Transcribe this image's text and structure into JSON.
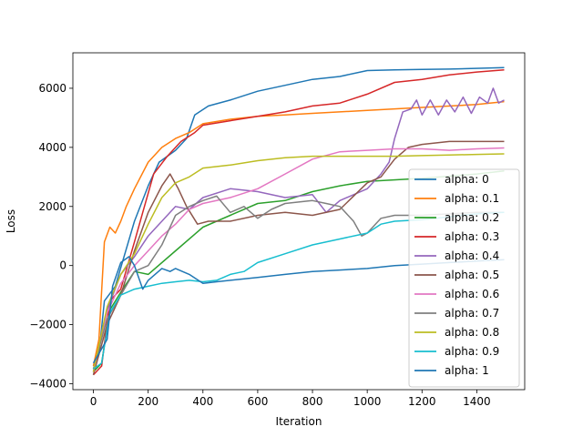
{
  "chart_data": {
    "type": "line",
    "title": "",
    "xlabel": "Iteration",
    "ylabel": "Loss",
    "xlim": [
      -75,
      1575
    ],
    "ylim": [
      -4200,
      7200
    ],
    "xticks": [
      0,
      200,
      400,
      600,
      800,
      1000,
      1200,
      1400
    ],
    "xtick_labels": [
      "0",
      "200",
      "400",
      "600",
      "800",
      "1000",
      "1200",
      "1400"
    ],
    "yticks": [
      -4000,
      -2000,
      0,
      2000,
      4000,
      6000
    ],
    "ytick_labels": [
      "−4000",
      "−2000",
      "0",
      "2000",
      "4000",
      "6000"
    ],
    "grid": false,
    "legend_position": "right",
    "series": [
      {
        "name": "alpha: 0",
        "color": "#1f77b4",
        "points": [
          [
            0,
            -3500
          ],
          [
            20,
            -3000
          ],
          [
            40,
            -1200
          ],
          [
            80,
            -700
          ],
          [
            150,
            1500
          ],
          [
            200,
            2700
          ],
          [
            240,
            3500
          ],
          [
            300,
            3900
          ],
          [
            340,
            4300
          ],
          [
            370,
            5100
          ],
          [
            420,
            5400
          ],
          [
            500,
            5600
          ],
          [
            600,
            5900
          ],
          [
            700,
            6100
          ],
          [
            800,
            6300
          ],
          [
            900,
            6400
          ],
          [
            1000,
            6600
          ],
          [
            1100,
            6620
          ],
          [
            1200,
            6640
          ],
          [
            1300,
            6650
          ],
          [
            1500,
            6700
          ]
        ]
      },
      {
        "name": "alpha: 0.1",
        "color": "#ff7f0e",
        "points": [
          [
            0,
            -3400
          ],
          [
            20,
            -2500
          ],
          [
            40,
            800
          ],
          [
            60,
            1300
          ],
          [
            80,
            1100
          ],
          [
            100,
            1500
          ],
          [
            120,
            2000
          ],
          [
            150,
            2600
          ],
          [
            200,
            3500
          ],
          [
            250,
            4000
          ],
          [
            300,
            4300
          ],
          [
            350,
            4500
          ],
          [
            400,
            4800
          ],
          [
            500,
            4950
          ],
          [
            600,
            5050
          ],
          [
            700,
            5100
          ],
          [
            800,
            5150
          ],
          [
            1000,
            5250
          ],
          [
            1200,
            5350
          ],
          [
            1400,
            5450
          ],
          [
            1500,
            5550
          ]
        ]
      },
      {
        "name": "alpha: 0.2",
        "color": "#2ca02c",
        "points": [
          [
            0,
            -3600
          ],
          [
            30,
            -3300
          ],
          [
            60,
            -1500
          ],
          [
            100,
            -900
          ],
          [
            150,
            -200
          ],
          [
            200,
            -300
          ],
          [
            300,
            500
          ],
          [
            400,
            1300
          ],
          [
            500,
            1700
          ],
          [
            600,
            2100
          ],
          [
            700,
            2200
          ],
          [
            800,
            2500
          ],
          [
            900,
            2700
          ],
          [
            1000,
            2850
          ],
          [
            1200,
            2950
          ],
          [
            1400,
            3100
          ],
          [
            1500,
            3200
          ]
        ]
      },
      {
        "name": "alpha: 0.3",
        "color": "#d62728",
        "points": [
          [
            0,
            -3700
          ],
          [
            30,
            -3400
          ],
          [
            60,
            -1200
          ],
          [
            100,
            -800
          ],
          [
            150,
            800
          ],
          [
            180,
            1800
          ],
          [
            220,
            3100
          ],
          [
            270,
            3700
          ],
          [
            320,
            4200
          ],
          [
            370,
            4500
          ],
          [
            400,
            4750
          ],
          [
            500,
            4900
          ],
          [
            600,
            5050
          ],
          [
            700,
            5200
          ],
          [
            800,
            5400
          ],
          [
            900,
            5500
          ],
          [
            1000,
            5800
          ],
          [
            1100,
            6200
          ],
          [
            1200,
            6300
          ],
          [
            1300,
            6450
          ],
          [
            1400,
            6550
          ],
          [
            1500,
            6620
          ]
        ]
      },
      {
        "name": "alpha: 0.4",
        "color": "#9467bd",
        "points": [
          [
            0,
            -3600
          ],
          [
            50,
            -1500
          ],
          [
            100,
            -300
          ],
          [
            150,
            300
          ],
          [
            200,
            1000
          ],
          [
            250,
            1500
          ],
          [
            300,
            2000
          ],
          [
            350,
            1900
          ],
          [
            400,
            2300
          ],
          [
            500,
            2600
          ],
          [
            600,
            2500
          ],
          [
            700,
            2300
          ],
          [
            800,
            2400
          ],
          [
            850,
            1800
          ],
          [
            900,
            2200
          ],
          [
            1000,
            2600
          ],
          [
            1050,
            3100
          ],
          [
            1080,
            3500
          ],
          [
            1100,
            4300
          ],
          [
            1130,
            5200
          ],
          [
            1160,
            5300
          ],
          [
            1180,
            5600
          ],
          [
            1200,
            5100
          ],
          [
            1230,
            5600
          ],
          [
            1260,
            5100
          ],
          [
            1290,
            5600
          ],
          [
            1320,
            5200
          ],
          [
            1350,
            5700
          ],
          [
            1380,
            5150
          ],
          [
            1410,
            5700
          ],
          [
            1440,
            5500
          ],
          [
            1460,
            6000
          ],
          [
            1480,
            5500
          ],
          [
            1500,
            5600
          ]
        ]
      },
      {
        "name": "alpha: 0.5",
        "color": "#8c564b",
        "points": [
          [
            0,
            -3700
          ],
          [
            50,
            -2000
          ],
          [
            100,
            -1000
          ],
          [
            150,
            500
          ],
          [
            200,
            1800
          ],
          [
            250,
            2700
          ],
          [
            280,
            3100
          ],
          [
            310,
            2600
          ],
          [
            340,
            2000
          ],
          [
            380,
            1400
          ],
          [
            420,
            1500
          ],
          [
            500,
            1500
          ],
          [
            600,
            1700
          ],
          [
            700,
            1800
          ],
          [
            800,
            1700
          ],
          [
            900,
            1900
          ],
          [
            1000,
            2800
          ],
          [
            1050,
            3000
          ],
          [
            1100,
            3600
          ],
          [
            1150,
            4000
          ],
          [
            1200,
            4100
          ],
          [
            1300,
            4200
          ],
          [
            1500,
            4200
          ]
        ]
      },
      {
        "name": "alpha: 0.6",
        "color": "#e377c2",
        "points": [
          [
            0,
            -3600
          ],
          [
            50,
            -1600
          ],
          [
            100,
            -600
          ],
          [
            150,
            0
          ],
          [
            200,
            500
          ],
          [
            250,
            1000
          ],
          [
            300,
            1400
          ],
          [
            350,
            1900
          ],
          [
            400,
            2100
          ],
          [
            500,
            2300
          ],
          [
            600,
            2600
          ],
          [
            700,
            3100
          ],
          [
            800,
            3600
          ],
          [
            900,
            3850
          ],
          [
            1000,
            3900
          ],
          [
            1100,
            3950
          ],
          [
            1200,
            3950
          ],
          [
            1300,
            3900
          ],
          [
            1400,
            3950
          ],
          [
            1500,
            3980
          ]
        ]
      },
      {
        "name": "alpha: 0.7",
        "color": "#7f7f7f",
        "points": [
          [
            0,
            -3500
          ],
          [
            50,
            -1800
          ],
          [
            100,
            -1000
          ],
          [
            150,
            -200
          ],
          [
            200,
            0
          ],
          [
            250,
            700
          ],
          [
            300,
            1700
          ],
          [
            350,
            2000
          ],
          [
            400,
            2200
          ],
          [
            450,
            2350
          ],
          [
            500,
            1800
          ],
          [
            550,
            2000
          ],
          [
            600,
            1600
          ],
          [
            650,
            1900
          ],
          [
            700,
            2100
          ],
          [
            800,
            2200
          ],
          [
            850,
            2100
          ],
          [
            900,
            2000
          ],
          [
            950,
            1500
          ],
          [
            980,
            1000
          ],
          [
            1000,
            1100
          ],
          [
            1050,
            1600
          ],
          [
            1100,
            1700
          ],
          [
            1200,
            1700
          ],
          [
            1300,
            1750
          ],
          [
            1400,
            1800
          ],
          [
            1500,
            1800
          ]
        ]
      },
      {
        "name": "alpha: 0.8",
        "color": "#bcbd22",
        "points": [
          [
            0,
            -3600
          ],
          [
            50,
            -1400
          ],
          [
            100,
            -300
          ],
          [
            150,
            400
          ],
          [
            200,
            1400
          ],
          [
            250,
            2300
          ],
          [
            300,
            2800
          ],
          [
            350,
            3000
          ],
          [
            400,
            3300
          ],
          [
            500,
            3400
          ],
          [
            600,
            3550
          ],
          [
            700,
            3650
          ],
          [
            800,
            3700
          ],
          [
            900,
            3700
          ],
          [
            1000,
            3700
          ],
          [
            1100,
            3700
          ],
          [
            1200,
            3720
          ],
          [
            1300,
            3740
          ],
          [
            1400,
            3760
          ],
          [
            1500,
            3780
          ]
        ]
      },
      {
        "name": "alpha: 0.9",
        "color": "#17becf",
        "points": [
          [
            0,
            -3500
          ],
          [
            30,
            -3300
          ],
          [
            60,
            -1600
          ],
          [
            100,
            -1000
          ],
          [
            150,
            -800
          ],
          [
            200,
            -700
          ],
          [
            250,
            -600
          ],
          [
            300,
            -550
          ],
          [
            350,
            -500
          ],
          [
            400,
            -550
          ],
          [
            450,
            -500
          ],
          [
            500,
            -300
          ],
          [
            550,
            -200
          ],
          [
            600,
            100
          ],
          [
            700,
            400
          ],
          [
            800,
            700
          ],
          [
            900,
            900
          ],
          [
            1000,
            1100
          ],
          [
            1050,
            1400
          ],
          [
            1100,
            1500
          ],
          [
            1200,
            1550
          ],
          [
            1300,
            1650
          ],
          [
            1400,
            1750
          ],
          [
            1500,
            1800
          ]
        ]
      },
      {
        "name": "alpha: 1",
        "color": "#1f77b4",
        "points": [
          [
            0,
            -3300
          ],
          [
            50,
            -2500
          ],
          [
            70,
            -700
          ],
          [
            100,
            100
          ],
          [
            130,
            300
          ],
          [
            150,
            0
          ],
          [
            180,
            -800
          ],
          [
            200,
            -500
          ],
          [
            250,
            -100
          ],
          [
            280,
            -200
          ],
          [
            300,
            -100
          ],
          [
            350,
            -300
          ],
          [
            400,
            -600
          ],
          [
            450,
            -550
          ],
          [
            500,
            -500
          ],
          [
            600,
            -400
          ],
          [
            700,
            -300
          ],
          [
            800,
            -200
          ],
          [
            900,
            -150
          ],
          [
            1000,
            -100
          ],
          [
            1100,
            0
          ],
          [
            1200,
            50
          ],
          [
            1300,
            100
          ],
          [
            1400,
            150
          ],
          [
            1500,
            200
          ]
        ]
      }
    ]
  }
}
